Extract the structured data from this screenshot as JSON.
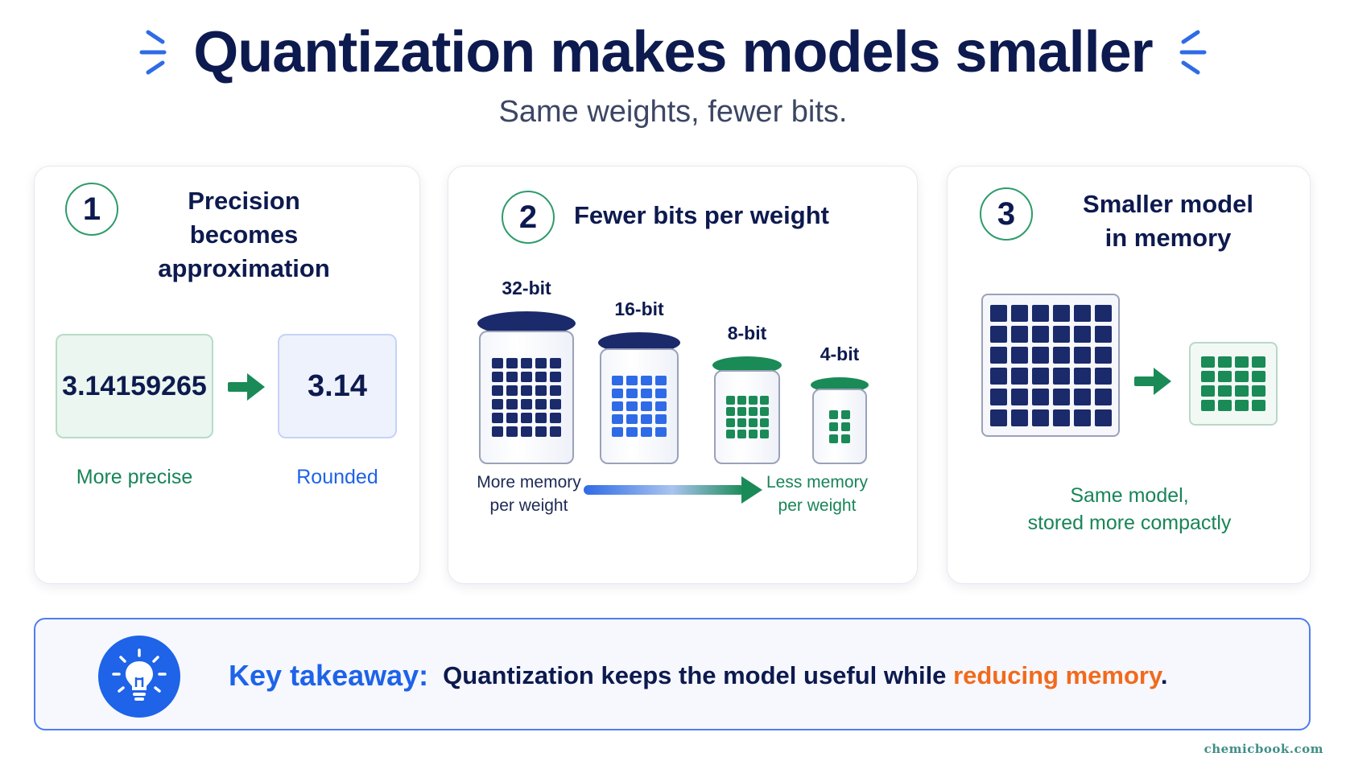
{
  "header": {
    "title": "Quantization makes models smaller",
    "subtitle": "Same weights, fewer bits."
  },
  "steps": [
    {
      "number": "1",
      "title_line1": "Precision becomes",
      "title_line2": "approximation",
      "precise_value": "3.14159265",
      "rounded_value": "3.14",
      "precise_label": "More precise",
      "rounded_label": "Rounded"
    },
    {
      "number": "2",
      "title": "Fewer bits per weight",
      "jars": [
        {
          "label": "32-bit",
          "color": "#1b2a6b"
        },
        {
          "label": "16-bit",
          "color": "#2f6be6"
        },
        {
          "label": "8-bit",
          "color": "#1a8a57"
        },
        {
          "label": "4-bit",
          "color": "#1a8a57"
        }
      ],
      "more_memory_line1": "More memory",
      "more_memory_line2": "per weight",
      "less_memory_line1": "Less memory",
      "less_memory_line2": "per weight"
    },
    {
      "number": "3",
      "title_line1": "Smaller model",
      "title_line2": "in memory",
      "caption_line1": "Same model,",
      "caption_line2": "stored more compactly"
    }
  ],
  "takeaway": {
    "icon": "lightbulb-icon",
    "label": "Key takeaway:",
    "text_before": "Quantization keeps the model useful  while",
    "highlight": "reducing memory",
    "text_after": "."
  },
  "footer": {
    "watermark": "chemicbook.com"
  },
  "colors": {
    "navy": "#0d1a4f",
    "blue": "#1e63e8",
    "green": "#188557",
    "orange": "#f26a1b"
  }
}
